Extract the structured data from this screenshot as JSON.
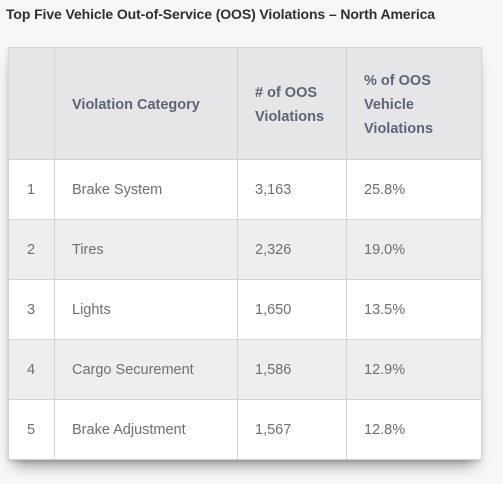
{
  "title": "Top Five Vehicle Out-of-Service (OOS) Violations – North America",
  "table": {
    "headers": [
      "",
      "Violation Category",
      "# of OOS Violations",
      "% of OOS Vehicle Violations"
    ],
    "rows": [
      {
        "rank": "1",
        "category": "Brake System",
        "count": "3,163",
        "percent": "25.8%"
      },
      {
        "rank": "2",
        "category": "Tires",
        "count": "2,326",
        "percent": "19.0%"
      },
      {
        "rank": "3",
        "category": "Lights",
        "count": "1,650",
        "percent": "13.5%"
      },
      {
        "rank": "4",
        "category": "Cargo Securement",
        "count": "1,586",
        "percent": "12.9%"
      },
      {
        "rank": "5",
        "category": "Brake Adjustment",
        "count": "1,567",
        "percent": "12.8%"
      }
    ]
  },
  "colors": {
    "header_bg": "#e6e6e9",
    "header_text": "#5d6478",
    "cell_text": "#6f6f6f",
    "stripe": "#eeeeee",
    "border": "#d3d3d3"
  }
}
